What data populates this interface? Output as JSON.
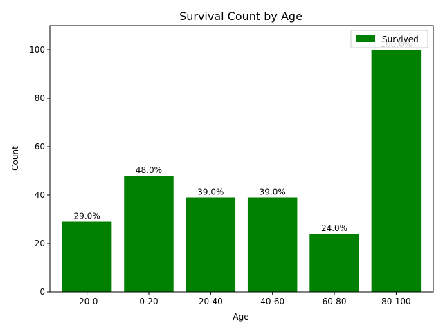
{
  "chart_data": {
    "type": "bar",
    "title": "Survival Count by Age",
    "xlabel": "Age",
    "ylabel": "Count",
    "categories": [
      "-20-0",
      "0-20",
      "20-40",
      "40-60",
      "60-80",
      "80-100"
    ],
    "series": [
      {
        "name": "Survived",
        "values": [
          29,
          48,
          39,
          39,
          24,
          100
        ],
        "color": "#008000",
        "labels": [
          "29.0%",
          "48.0%",
          "39.0%",
          "39.0%",
          "24.0%",
          "100.0%"
        ]
      }
    ],
    "ylim": [
      0,
      110
    ],
    "yticks": [
      0,
      20,
      40,
      60,
      80,
      100
    ],
    "grid": false,
    "legend_position": "top-right"
  }
}
